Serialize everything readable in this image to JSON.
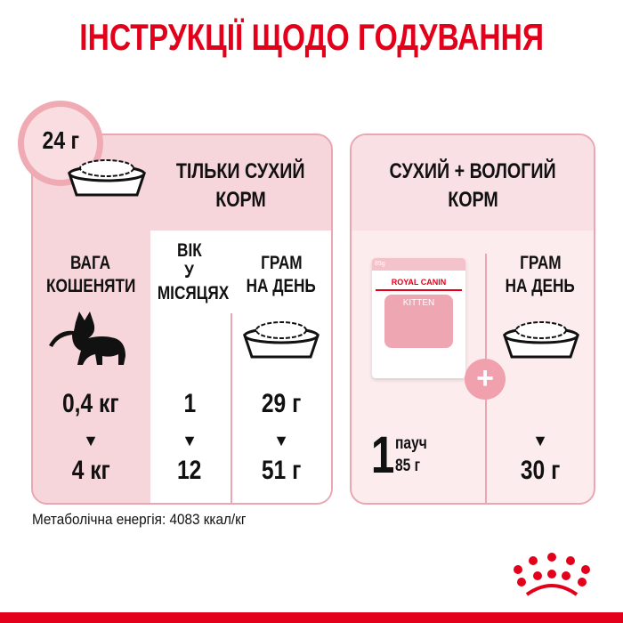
{
  "title": "ІНСТРУКЦІЇ ЩОДО ГОДУВАННЯ",
  "dry_only": {
    "portion_badge": "24 г",
    "heading_line1": "ТІЛЬКИ СУХИЙ",
    "heading_line2": "КОРМ",
    "col_weight": [
      "ВАГА",
      "КОШЕНЯТИ"
    ],
    "col_age": [
      "ВІК",
      "У",
      "МІСЯЦЯХ"
    ],
    "col_grams": [
      "ГРАМ",
      "НА ДЕНЬ"
    ],
    "weight_from": "0,4 кг",
    "weight_to": "4 кг",
    "age_from": "1",
    "age_to": "12",
    "grams_from": "29 г",
    "grams_to": "51 г"
  },
  "mixed": {
    "heading_line1": "СУХИЙ + ВОЛОГИЙ",
    "heading_line2": "КОРМ",
    "pouch_count": "1",
    "pouch_unit": "пауч",
    "pouch_weight": "85 г",
    "pouch_brand": "ROYAL CANIN",
    "pouch_product": "KITTEN",
    "pouch_size": "85g",
    "col_grams": [
      "ГРАМ",
      "НА ДЕНЬ"
    ],
    "grams": "30 г",
    "plus": "+"
  },
  "arrow": "▼",
  "metabolic_energy": "Метаболічна енергія: 4083 ккал/кг",
  "colors": {
    "brand_red": "#e2001a",
    "pink": "#f6d6db",
    "border": "#eba7b1"
  }
}
